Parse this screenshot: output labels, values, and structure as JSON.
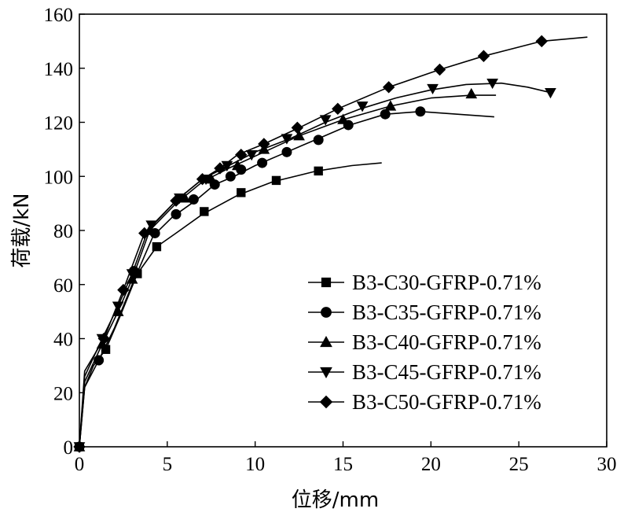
{
  "chart_data": {
    "type": "line",
    "xlabel": "位移/mm",
    "ylabel": "荷载/kN",
    "xlim": [
      0,
      30
    ],
    "ylim": [
      0,
      160
    ],
    "xticks": [
      0,
      5,
      10,
      15,
      20,
      25,
      30
    ],
    "yticks": [
      0,
      20,
      40,
      60,
      80,
      100,
      120,
      140,
      160
    ],
    "grid": false,
    "legend": "bottom-right",
    "series": [
      {
        "name": "B3-C30-GFRP-0.71%",
        "marker": "square",
        "line": [
          [
            0,
            0
          ],
          [
            0.3,
            22
          ],
          [
            0.8,
            30
          ],
          [
            1.5,
            36
          ],
          [
            2.3,
            48
          ],
          [
            3.3,
            64
          ],
          [
            4.4,
            74
          ],
          [
            5.5,
            79
          ],
          [
            7,
            86
          ],
          [
            9,
            93
          ],
          [
            11,
            98
          ],
          [
            13.5,
            102
          ],
          [
            15.5,
            104
          ],
          [
            17.2,
            105
          ]
        ],
        "points": [
          [
            0,
            0
          ],
          [
            1.5,
            36
          ],
          [
            3.3,
            64
          ],
          [
            4.4,
            74
          ],
          [
            7.1,
            87
          ],
          [
            9.2,
            94
          ],
          [
            11.2,
            98.5
          ],
          [
            13.6,
            102
          ]
        ]
      },
      {
        "name": "B3-C35-GFRP-0.71%",
        "marker": "circle",
        "line": [
          [
            0,
            0
          ],
          [
            0.3,
            22
          ],
          [
            1.1,
            32
          ],
          [
            2,
            44
          ],
          [
            3,
            60
          ],
          [
            4.2,
            78
          ],
          [
            5.3,
            85
          ],
          [
            6.6,
            91
          ],
          [
            7.7,
            97
          ],
          [
            8.8,
            100
          ],
          [
            10,
            104
          ],
          [
            11.8,
            109
          ],
          [
            13.6,
            114
          ],
          [
            15.4,
            119
          ],
          [
            17.4,
            123
          ],
          [
            19.4,
            124
          ],
          [
            21.5,
            123
          ],
          [
            23.6,
            122
          ]
        ],
        "points": [
          [
            0,
            0
          ],
          [
            1.1,
            32
          ],
          [
            3.1,
            65
          ],
          [
            4.3,
            79
          ],
          [
            5.5,
            86
          ],
          [
            6.5,
            91.5
          ],
          [
            7.7,
            97
          ],
          [
            8.6,
            100
          ],
          [
            9.2,
            102.5
          ],
          [
            10.4,
            105
          ],
          [
            11.8,
            109
          ],
          [
            13.6,
            113.5
          ],
          [
            15.3,
            119
          ],
          [
            17.4,
            123
          ],
          [
            19.4,
            124
          ]
        ]
      },
      {
        "name": "B3-C40-GFRP-0.71%",
        "marker": "triangle-up",
        "line": [
          [
            0,
            0
          ],
          [
            0.3,
            24
          ],
          [
            1.3,
            38
          ],
          [
            2.2,
            50
          ],
          [
            3,
            62
          ],
          [
            4,
            80
          ],
          [
            5.5,
            90
          ],
          [
            7,
            98
          ],
          [
            8.5,
            103
          ],
          [
            10.5,
            109
          ],
          [
            12.5,
            115
          ],
          [
            15,
            121
          ],
          [
            17.7,
            126
          ],
          [
            20,
            129
          ],
          [
            22.3,
            130
          ],
          [
            23.7,
            130
          ]
        ],
        "points": [
          [
            0,
            0
          ],
          [
            1.3,
            38
          ],
          [
            2.2,
            50
          ],
          [
            3,
            62
          ],
          [
            4,
            80
          ],
          [
            6,
            92
          ],
          [
            7.5,
            99
          ],
          [
            9,
            104
          ],
          [
            10.5,
            110
          ],
          [
            12.5,
            115
          ],
          [
            15,
            121
          ],
          [
            17.7,
            126
          ],
          [
            22.3,
            130.5
          ]
        ]
      },
      {
        "name": "B3-C45-GFRP-0.71%",
        "marker": "triangle-down",
        "line": [
          [
            0,
            0
          ],
          [
            0.3,
            26
          ],
          [
            1.3,
            40
          ],
          [
            2.2,
            52
          ],
          [
            3,
            64
          ],
          [
            3.9,
            80
          ],
          [
            5.5,
            91
          ],
          [
            7,
            99
          ],
          [
            8.5,
            104
          ],
          [
            10,
            109
          ],
          [
            12,
            114
          ],
          [
            14,
            120
          ],
          [
            16,
            125
          ],
          [
            18,
            129
          ],
          [
            20,
            132
          ],
          [
            22,
            134
          ],
          [
            24,
            134.5
          ],
          [
            25.5,
            133
          ],
          [
            26.8,
            131
          ]
        ],
        "points": [
          [
            0,
            0
          ],
          [
            1.3,
            40
          ],
          [
            2.2,
            52
          ],
          [
            3,
            64
          ],
          [
            4.1,
            82
          ],
          [
            5.7,
            92
          ],
          [
            7.2,
            99
          ],
          [
            8.4,
            104
          ],
          [
            9.8,
            108
          ],
          [
            11.8,
            114
          ],
          [
            14,
            121
          ],
          [
            16.1,
            126
          ],
          [
            20.1,
            132.5
          ],
          [
            23.5,
            134.5
          ],
          [
            26.8,
            131
          ]
        ]
      },
      {
        "name": "B3-C50-GFRP-0.71%",
        "marker": "diamond",
        "line": [
          [
            0,
            0
          ],
          [
            0.3,
            28
          ],
          [
            1.4,
            40
          ],
          [
            2.5,
            58
          ],
          [
            3.7,
            79
          ],
          [
            5.5,
            91
          ],
          [
            7,
            99
          ],
          [
            8,
            103
          ],
          [
            9,
            108
          ],
          [
            10.5,
            112
          ],
          [
            12.5,
            118
          ],
          [
            14.7,
            125
          ],
          [
            17.6,
            133
          ],
          [
            20.5,
            139.5
          ],
          [
            23,
            144.5
          ],
          [
            26.3,
            150
          ],
          [
            28.9,
            151.5
          ]
        ],
        "points": [
          [
            0,
            0
          ],
          [
            1.4,
            40
          ],
          [
            2.5,
            58
          ],
          [
            3.7,
            79
          ],
          [
            5.5,
            91
          ],
          [
            7,
            99
          ],
          [
            8,
            103
          ],
          [
            9.2,
            108
          ],
          [
            10.5,
            112
          ],
          [
            12.4,
            118
          ],
          [
            14.7,
            125
          ],
          [
            17.6,
            133
          ],
          [
            20.5,
            139.5
          ],
          [
            23,
            144.5
          ],
          [
            26.3,
            150
          ]
        ]
      }
    ]
  }
}
